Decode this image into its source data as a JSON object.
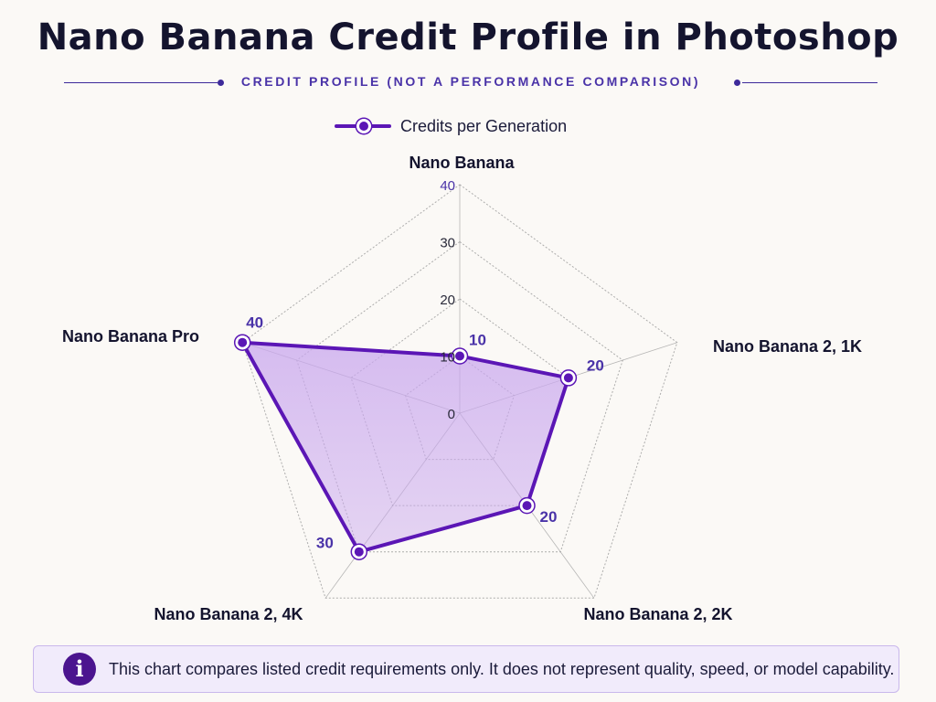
{
  "title": "Nano Banana Credit Profile in Photoshop",
  "subtitle": "CREDIT PROFILE (NOT A PERFORMANCE COMPARISON)",
  "note": {
    "icon": "info-icon",
    "text": "This chart compares listed credit requirements only. It does not represent quality, speed, or model capability."
  },
  "colors": {
    "series": "#5b16b5",
    "fill": "#c9a7ee",
    "accent": "#4a33a8",
    "grid": "#9a9a9a"
  },
  "chart_data": {
    "type": "radar",
    "title": "Nano Banana Credit Profile in Photoshop",
    "subtitle": "CREDIT PROFILE (NOT A PERFORMANCE COMPARISON)",
    "categories": [
      "Nano Banana",
      "Nano Banana 2, 1K",
      "Nano Banana 2, 2K",
      "Nano Banana 2, 4K",
      "Nano Banana Pro"
    ],
    "series": [
      {
        "name": "Credits per Generation",
        "values": [
          10,
          20,
          20,
          30,
          40
        ]
      }
    ],
    "data_labels": [
      "10",
      "20",
      "20",
      "30",
      "40"
    ],
    "radial_range": [
      0,
      40
    ],
    "radial_ticks": [
      "0",
      "10",
      "20",
      "30",
      "40"
    ],
    "grid": true,
    "legend": "top-center"
  }
}
